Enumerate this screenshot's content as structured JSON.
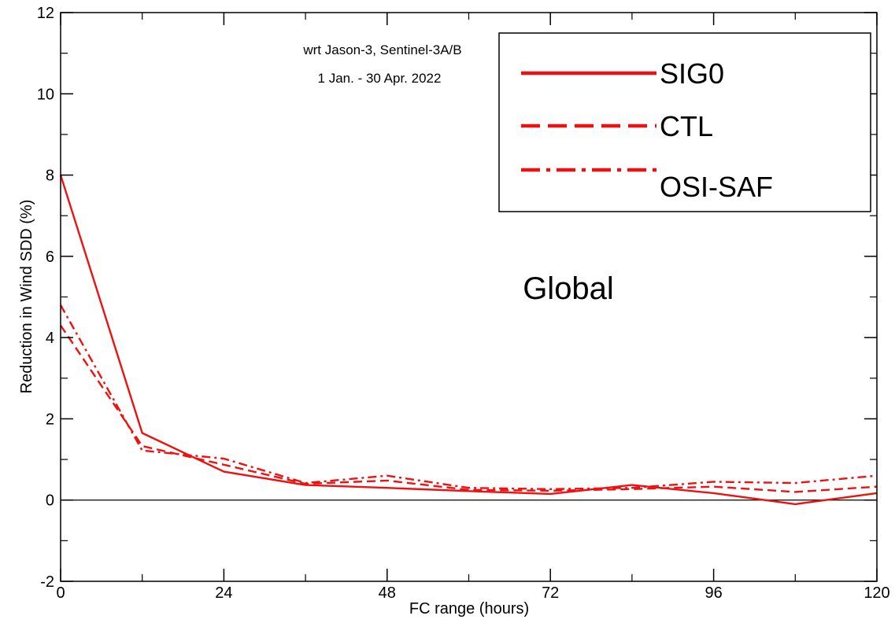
{
  "chart_data": {
    "type": "line",
    "title": "",
    "xlabel": "FC range (hours)",
    "ylabel": "Reduction in Wind SDD (%)",
    "xlim": [
      0,
      120
    ],
    "ylim": [
      -2,
      12
    ],
    "xticks": [
      0,
      24,
      48,
      72,
      96,
      120
    ],
    "xtick_labels": [
      "0",
      "24",
      "48",
      "72",
      "96",
      "120"
    ],
    "yticks": [
      -2,
      0,
      2,
      4,
      6,
      8,
      10,
      12
    ],
    "ytick_labels": [
      "-2",
      "0",
      "2",
      "4",
      "6",
      "8",
      "10",
      "12"
    ],
    "grid": false,
    "zero_line": true,
    "legend_position": "top-right",
    "annotations": [
      "wrt Jason-3, Sentinel-3A/B",
      "1 Jan. - 30 Apr. 2022"
    ],
    "region_label": "Global",
    "colors": {
      "series": "#ee1111",
      "axis": "#000000"
    },
    "x": [
      0,
      12,
      24,
      36,
      48,
      60,
      72,
      84,
      96,
      108,
      120
    ],
    "series": [
      {
        "name": "SIG0",
        "style": "solid",
        "values": [
          8.0,
          1.65,
          0.7,
          0.37,
          0.3,
          0.22,
          0.15,
          0.37,
          0.17,
          -0.1,
          0.17
        ]
      },
      {
        "name": "CTL",
        "style": "dashed",
        "values": [
          4.3,
          1.33,
          0.87,
          0.4,
          0.48,
          0.25,
          0.23,
          0.27,
          0.33,
          0.2,
          0.33
        ]
      },
      {
        "name": "OSI-SAF",
        "style": "dashdot",
        "values": [
          4.8,
          1.22,
          1.02,
          0.42,
          0.6,
          0.3,
          0.27,
          0.3,
          0.45,
          0.42,
          0.6
        ]
      }
    ]
  }
}
